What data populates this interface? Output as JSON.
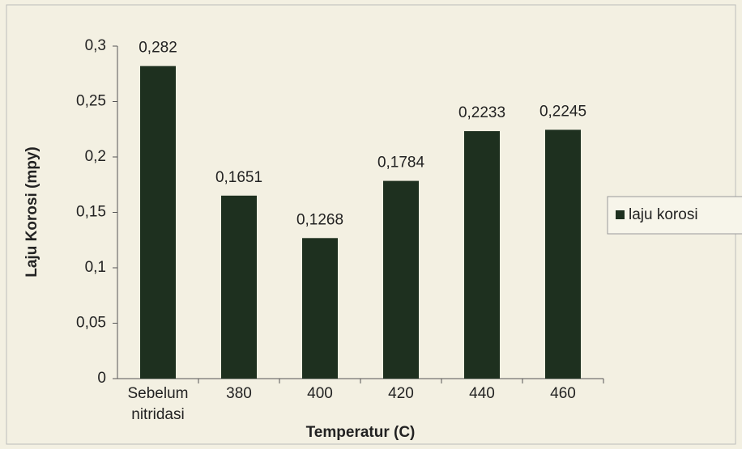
{
  "chart_data": {
    "type": "bar",
    "x_label": "Temperatur (C)",
    "y_label": "Laju Korosi (mpy)",
    "categories": [
      "Sebelum nitridasi",
      "380",
      "400",
      "420",
      "440",
      "460"
    ],
    "series": [
      {
        "name": "laju korosi",
        "color": "#1e301f",
        "values": [
          0.282,
          0.1651,
          0.1268,
          0.1784,
          0.2233,
          0.2245
        ],
        "value_labels": [
          "0,282",
          "0,1651",
          "0,1268",
          "0,1784",
          "0,2233",
          "0,2245"
        ]
      }
    ],
    "ylim": [
      0,
      0.3
    ],
    "yticks": [
      0,
      {
        "value": 0.05,
        "label": "0,05"
      },
      {
        "value": 0.1,
        "label": "0,1"
      },
      {
        "value": 0.15,
        "label": "0,15"
      },
      {
        "value": 0.2,
        "label": "0,2"
      },
      {
        "value": 0.25,
        "label": "0,25"
      },
      {
        "value": 0.3,
        "label": "0,3"
      }
    ],
    "legend": "right",
    "grid": false
  }
}
